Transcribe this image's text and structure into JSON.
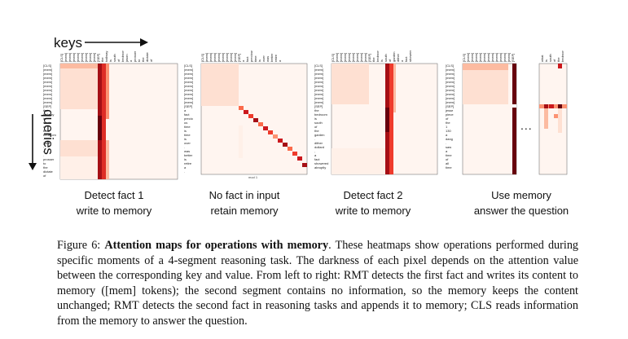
{
  "axes": {
    "keys_label": "keys",
    "queries_label": "queries"
  },
  "panels": [
    {
      "caption_line1": "Detect fact 1",
      "caption_line2": "write to memory"
    },
    {
      "caption_line1": "No fact in input",
      "caption_line2": "retain memory",
      "axis_note": "mod 1"
    },
    {
      "caption_line1": "Detect fact 2",
      "caption_line2": "write to memory"
    },
    {
      "caption_line1": "Use memory",
      "caption_line2": "answer the question"
    }
  ],
  "ellipsis": "...",
  "caption": {
    "label": "Figure 6:",
    "title": "Attention maps for operations with memory",
    "body": ". These heatmaps show operations performed during specific moments of a 4-segment reasoning task. The darkness of each pixel depends on the attention value between the corresponding key and value. From left to right: RMT detects the first fact and writes its content to memory ([mem] tokens); the second segment contains no information, so the memory keeps the content unchanged; RMT detects the second fact in reasoning tasks and appends it to memory; CLS reads information from the memory to answer the question."
  },
  "colors": {
    "max": "#67000d",
    "min": "#fff5f0",
    "accent": "#cb181d"
  }
}
